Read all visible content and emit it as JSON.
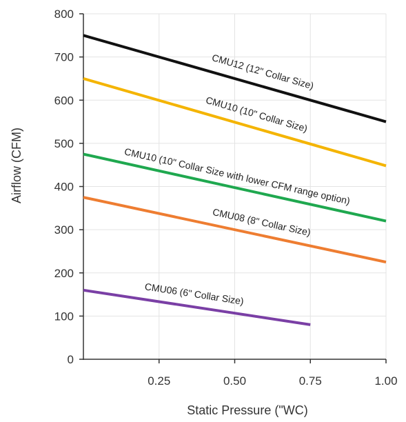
{
  "chart_data": {
    "type": "line",
    "title": "",
    "xlabel": "Static Pressure (\"WC)",
    "ylabel": "Airflow (CFM)",
    "xlim": [
      0,
      1
    ],
    "ylim": [
      0,
      800
    ],
    "grid": true,
    "x_ticks": [
      {
        "value": 0.25,
        "label": "0.25"
      },
      {
        "value": 0.5,
        "label": "0.50"
      },
      {
        "value": 0.75,
        "label": "0.75"
      },
      {
        "value": 1.0,
        "label": "1.00"
      }
    ],
    "y_ticks": [
      {
        "value": 0,
        "label": "0"
      },
      {
        "value": 100,
        "label": "100"
      },
      {
        "value": 200,
        "label": "200"
      },
      {
        "value": 300,
        "label": "300"
      },
      {
        "value": 400,
        "label": "400"
      },
      {
        "value": 500,
        "label": "500"
      },
      {
        "value": 600,
        "label": "600"
      },
      {
        "value": 700,
        "label": "700"
      },
      {
        "value": 800,
        "label": "800"
      }
    ],
    "series": [
      {
        "name": "CMU12 (12\" Collar Size)",
        "color": "#111111",
        "x": [
          0,
          1
        ],
        "y": [
          750,
          550
        ]
      },
      {
        "name": "CMU10 (10\" Collar Size)",
        "color": "#f4b400",
        "x": [
          0,
          1
        ],
        "y": [
          650,
          448
        ]
      },
      {
        "name": "CMU10 (10\" Collar Size with lower CFM range option)",
        "color": "#1fa84f",
        "x": [
          0,
          1
        ],
        "y": [
          475,
          320
        ]
      },
      {
        "name": "CMU08 (8\" Collar Size)",
        "color": "#ee7d31",
        "x": [
          0,
          1
        ],
        "y": [
          375,
          225
        ]
      },
      {
        "name": "CMU06 (6\" Collar Size)",
        "color": "#7a3fa5",
        "x": [
          0,
          0.75
        ],
        "y": [
          160,
          80
        ]
      }
    ]
  }
}
